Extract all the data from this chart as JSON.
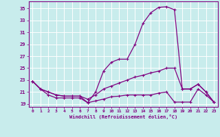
{
  "xlabel": "Windchill (Refroidissement éolien,°C)",
  "background_color": "#c8ecec",
  "line_color": "#800080",
  "grid_color": "#ffffff",
  "x_ticks": [
    0,
    1,
    2,
    3,
    4,
    5,
    6,
    7,
    8,
    9,
    10,
    11,
    12,
    13,
    14,
    15,
    16,
    17,
    18,
    19,
    20,
    21,
    22,
    23
  ],
  "y_ticks": [
    19,
    21,
    23,
    25,
    27,
    29,
    31,
    33,
    35
  ],
  "ylim": [
    18.5,
    36.2
  ],
  "xlim": [
    -0.5,
    23.5
  ],
  "series": [
    {
      "x": [
        0,
        1,
        2,
        3,
        4,
        5,
        6,
        7,
        8,
        9,
        10,
        11,
        12,
        13,
        14,
        15,
        16,
        17,
        18,
        19,
        20,
        21,
        22,
        23
      ],
      "y": [
        22.8,
        21.5,
        21.0,
        20.5,
        20.3,
        20.3,
        20.3,
        19.2,
        21.0,
        24.5,
        26.0,
        26.5,
        26.5,
        29.0,
        32.5,
        34.3,
        35.2,
        35.3,
        34.8,
        21.5,
        21.5,
        22.3,
        21.0,
        19.3
      ]
    },
    {
      "x": [
        0,
        1,
        2,
        3,
        4,
        5,
        6,
        7,
        8,
        9,
        10,
        11,
        12,
        13,
        14,
        15,
        16,
        17,
        18,
        19,
        20,
        21,
        22,
        23
      ],
      "y": [
        22.8,
        21.5,
        21.0,
        20.5,
        20.3,
        20.3,
        20.3,
        19.8,
        20.5,
        21.5,
        22.0,
        22.5,
        23.0,
        23.5,
        23.8,
        24.2,
        24.5,
        25.0,
        25.0,
        21.5,
        21.5,
        22.3,
        21.0,
        19.3
      ]
    },
    {
      "x": [
        0,
        1,
        2,
        3,
        4,
        5,
        6,
        7,
        8,
        9,
        10,
        11,
        12,
        13,
        14,
        15,
        16,
        17,
        18,
        19,
        20,
        21,
        22,
        23
      ],
      "y": [
        22.8,
        21.5,
        20.5,
        20.0,
        20.0,
        20.0,
        20.0,
        19.2,
        19.5,
        19.8,
        20.2,
        20.3,
        20.5,
        20.5,
        20.5,
        20.5,
        20.8,
        21.0,
        19.3,
        19.3,
        19.3,
        21.5,
        20.5,
        19.3
      ]
    }
  ]
}
